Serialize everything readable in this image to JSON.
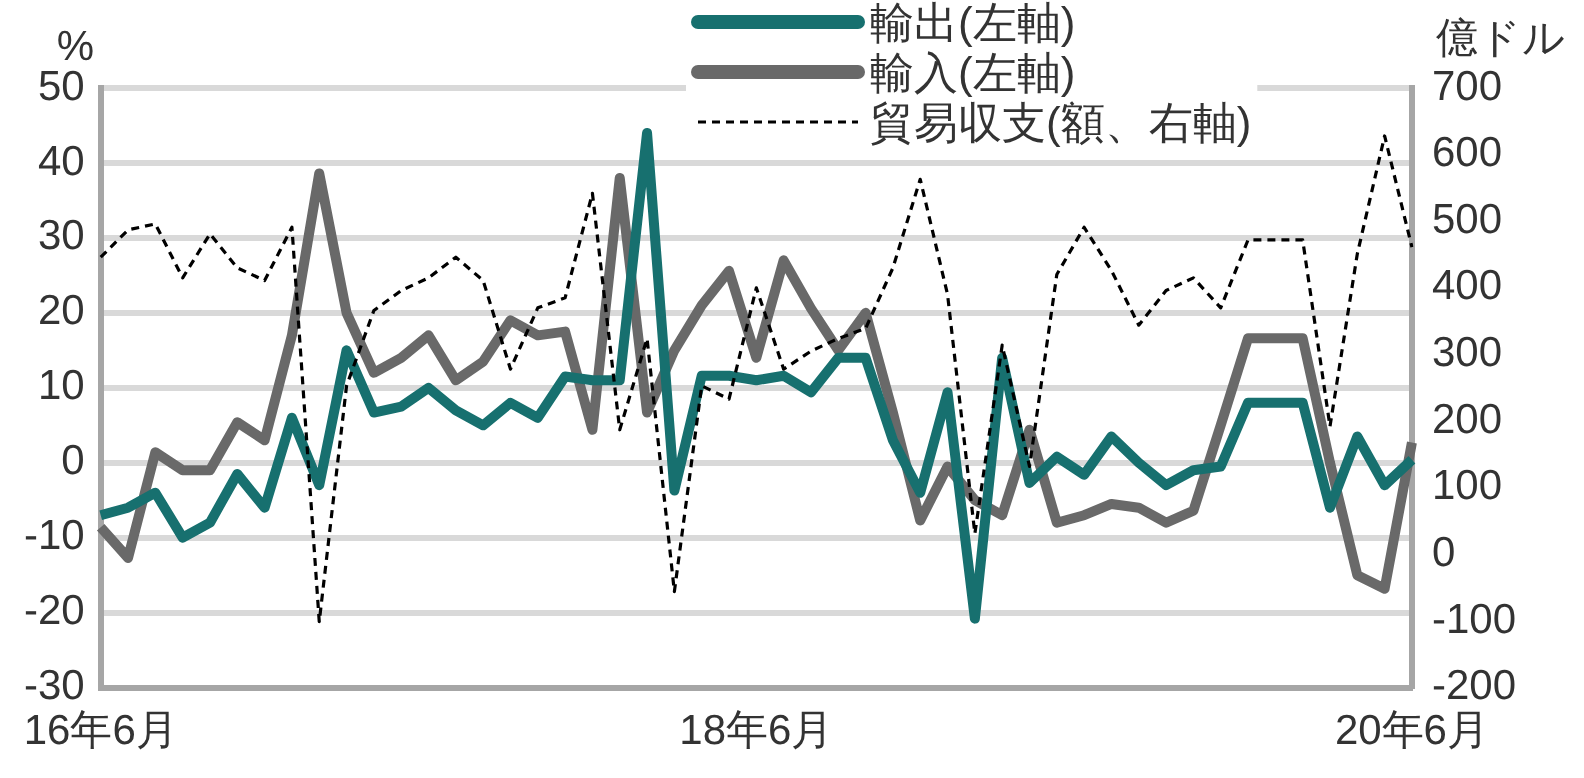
{
  "chart_data": {
    "type": "line",
    "ylabel": "%",
    "y2label": "億ドル",
    "categories": [
      "16年6月",
      null,
      null,
      null,
      null,
      null,
      null,
      null,
      null,
      null,
      null,
      null,
      null,
      null,
      null,
      null,
      null,
      null,
      null,
      null,
      null,
      null,
      null,
      null,
      "18年6月",
      null,
      null,
      null,
      null,
      null,
      null,
      null,
      null,
      null,
      null,
      null,
      null,
      null,
      null,
      null,
      null,
      null,
      null,
      null,
      null,
      null,
      null,
      null,
      "20年6月"
    ],
    "series": [
      {
        "name": "輸出(左軸)",
        "color": "#17706f",
        "line_style": "solid",
        "values": [
          -7,
          -6,
          -4,
          -10,
          -8,
          -1.5,
          -6,
          6,
          -3,
          15,
          6.7,
          7.5,
          10,
          7,
          5,
          8,
          6,
          11.5,
          11,
          11,
          44,
          -3.7,
          11.6,
          11.6,
          11,
          11.6,
          9.4,
          14,
          14,
          3,
          -4,
          9.4,
          -20.8,
          14,
          -2.7,
          0.8,
          -1.6,
          3.5,
          0,
          -3,
          -1,
          -0.5,
          8,
          8,
          8,
          -6,
          3.5,
          -3,
          0.4
        ]
      },
      {
        "name": "輸入(左軸)",
        "color": "#696969",
        "line_style": "solid",
        "values": [
          -8.6,
          -12.7,
          1.4,
          -1,
          -1,
          5.4,
          3,
          17,
          38.6,
          20,
          12,
          14,
          17,
          11,
          13.5,
          19,
          17,
          17.5,
          4.4,
          38,
          6.7,
          15,
          21,
          25.6,
          14,
          27,
          20.6,
          15,
          20,
          6.7,
          -7.7,
          -0.5,
          -5,
          -7,
          4.4,
          -8,
          -7,
          -5.5,
          -6,
          -8,
          -6.4,
          5,
          16.6,
          16.6,
          16.6,
          0,
          -15,
          -16.8,
          2.7
        ]
      },
      {
        "name": "貿易収支(額、右軸)",
        "color": "#000000",
        "line_style": "dashed",
        "axis": "y2",
        "values": [
          446,
          487,
          496,
          415,
          481,
          430,
          411,
          491,
          -101,
          253,
          366,
          396,
          415,
          446,
          411,
          278,
          370,
          385,
          542,
          187,
          324,
          -56,
          253,
          233,
          400,
          278,
          305,
          324,
          339,
          430,
          563,
          390,
          31,
          314,
          132,
          420,
          491,
          426,
          344,
          396,
          415,
          370,
          472,
          472,
          472,
          192,
          451,
          628,
          461
        ]
      }
    ],
    "ylim": [
      -30,
      50
    ],
    "yticks": [
      -30,
      -20,
      -10,
      0,
      10,
      20,
      30,
      40,
      50
    ],
    "y2lim": [
      -200,
      700
    ],
    "y2ticks": [
      -200,
      -100,
      0,
      100,
      200,
      300,
      400,
      500,
      600,
      700
    ],
    "grid": "y",
    "legend": "top",
    "marker": "none"
  }
}
